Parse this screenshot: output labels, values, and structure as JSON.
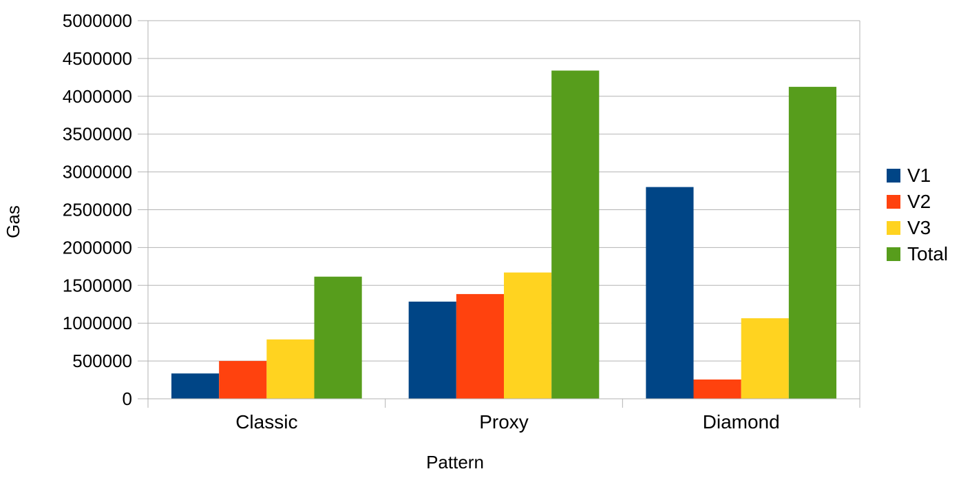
{
  "chart_data": {
    "type": "bar",
    "xlabel": "Pattern",
    "ylabel": "Gas",
    "categories": [
      "Classic",
      "Proxy",
      "Diamond"
    ],
    "ylim": [
      0,
      5000000
    ],
    "yticks": [
      0,
      500000,
      1000000,
      1500000,
      2000000,
      2500000,
      3000000,
      3500000,
      4000000,
      4500000,
      5000000
    ],
    "ytick_labels": [
      "0",
      "500000",
      "1000000",
      "1500000",
      "2000000",
      "2500000",
      "3000000",
      "3500000",
      "4000000",
      "4500000",
      "5000000"
    ],
    "grid": true,
    "legend_position": "right",
    "series": [
      {
        "name": "V1",
        "color": "#004586",
        "values": [
          335000,
          1285000,
          2800000
        ]
      },
      {
        "name": "V2",
        "color": "#ff420e",
        "values": [
          500000,
          1385000,
          255000
        ]
      },
      {
        "name": "V3",
        "color": "#ffd320",
        "values": [
          785000,
          1670000,
          1065000
        ]
      },
      {
        "name": "Total",
        "color": "#579d1c",
        "values": [
          1615000,
          4340000,
          4125000
        ]
      }
    ]
  }
}
